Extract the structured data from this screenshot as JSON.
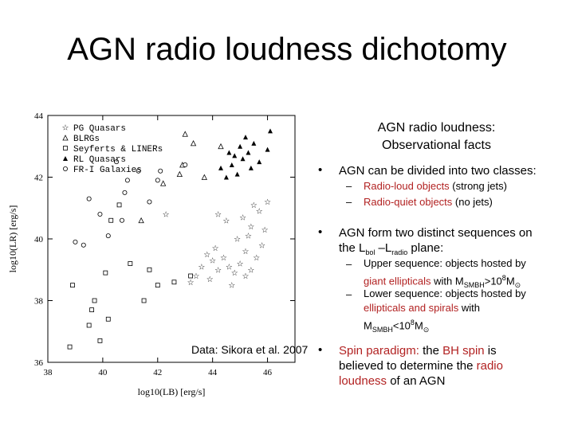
{
  "slide_title": "AGN radio loudness dichotomy",
  "credit": "Data: Sikora et al. 2007",
  "right_heading": "AGN radio loudness: Observational facts",
  "bullet1": "AGN can be divided into two classes:",
  "sub1a_red": "Radio-loud objects",
  "sub1a_rest": " (strong jets)",
  "sub1b_red": "Radio-quiet objects",
  "sub1b_rest": " (no jets)",
  "bullet2_line1": "AGN form two distinct sequences on",
  "bullet2_the": "the L",
  "bullet2_bol": "bol",
  "bullet2_dash": " –L",
  "bullet2_radio": "radio",
  "bullet2_plane": " plane:",
  "sub2a_l1": "Upper sequence: objects hosted by",
  "sub2a_red": "giant ellipticals",
  "sub2a_with": " with M",
  "sub2a_smbh": "SMBH",
  "sub2a_gt": ">10",
  "sub2a_exp": "8",
  "sub2a_m": "M",
  "sub2a_sun": "⊙",
  "sub2b_l1": "Lower sequence: objects hosted by",
  "sub2b_red": "ellipticals and spirals",
  "sub2b_with": " with",
  "sub2b_m": "M",
  "sub2b_smbh": "SMBH",
  "sub2b_lt": "<10",
  "sub2b_exp": "8",
  "sub2b_m2": "M",
  "sub2b_sun": "⊙",
  "bullet3_red1": "Spin paradigm:",
  "bullet3_the": " the ",
  "bullet3_red2": "BH spin",
  "bullet3_is": " is",
  "bullet3_line2a": "believed to determine the ",
  "bullet3_red3": "radio",
  "bullet3_red4": "loudness",
  "bullet3_end": " of an AGN",
  "bullet_glyph": "•",
  "dash_glyph": "–",
  "chart_data": {
    "type": "scatter",
    "xlabel": "log10(LB) [erg/s]",
    "ylabel": "log10(LR) [erg/s]",
    "xlim": [
      38,
      47
    ],
    "ylim": [
      36,
      44
    ],
    "xticks": [
      "38",
      "40",
      "42",
      "44",
      "46"
    ],
    "yticks": [
      "36",
      "38",
      "40",
      "42",
      "44"
    ],
    "legend_position": "top-left",
    "series": [
      {
        "name": "PG Quasars",
        "marker": "star",
        "points": [
          [
            43.8,
            39.5
          ],
          [
            44,
            39.3
          ],
          [
            44.2,
            39.0
          ],
          [
            44.4,
            39.4
          ],
          [
            44.6,
            39.1
          ],
          [
            44.8,
            38.9
          ],
          [
            45,
            39.2
          ],
          [
            45.2,
            39.6
          ],
          [
            45.4,
            39.0
          ],
          [
            45.6,
            39.4
          ],
          [
            45.8,
            39.8
          ],
          [
            45.9,
            40.3
          ],
          [
            44.9,
            40.0
          ],
          [
            45.3,
            40.1
          ],
          [
            44.5,
            40.6
          ],
          [
            45.1,
            40.7
          ],
          [
            45.5,
            41.1
          ],
          [
            45.7,
            40.9
          ],
          [
            44.2,
            40.8
          ],
          [
            43.9,
            38.7
          ],
          [
            44.7,
            38.5
          ],
          [
            45.2,
            38.8
          ],
          [
            46.0,
            41.2
          ],
          [
            45.4,
            40.4
          ],
          [
            44.1,
            39.7
          ],
          [
            43.6,
            39.1
          ],
          [
            43.4,
            38.8
          ],
          [
            42.3,
            40.8
          ],
          [
            43.2,
            38.6
          ]
        ]
      },
      {
        "name": "BLRGs",
        "marker": "open-triangle",
        "points": [
          [
            43.0,
            43.4
          ],
          [
            43.3,
            43.1
          ],
          [
            42.2,
            41.8
          ],
          [
            42.8,
            42.1
          ],
          [
            41.4,
            40.6
          ],
          [
            43.7,
            42.0
          ],
          [
            44.3,
            43.0
          ],
          [
            42.9,
            42.4
          ]
        ]
      },
      {
        "name": "Seyferts & LINERs",
        "marker": "open-square",
        "points": [
          [
            38.9,
            38.5
          ],
          [
            39.6,
            37.7
          ],
          [
            40.2,
            37.4
          ],
          [
            39.9,
            36.7
          ],
          [
            39.5,
            37.2
          ],
          [
            41.5,
            38.0
          ],
          [
            42.6,
            38.6
          ],
          [
            43.2,
            38.8
          ],
          [
            41.0,
            39.2
          ],
          [
            40.3,
            40.6
          ],
          [
            40.6,
            41.1
          ],
          [
            40.1,
            38.9
          ],
          [
            42.0,
            38.5
          ],
          [
            41.7,
            39.0
          ],
          [
            39.7,
            38.0
          ],
          [
            38.8,
            36.5
          ]
        ]
      },
      {
        "name": "RL Quasars",
        "marker": "filled-triangle",
        "points": [
          [
            44.3,
            42.3
          ],
          [
            44.5,
            42.0
          ],
          [
            44.7,
            42.4
          ],
          [
            44.9,
            42.1
          ],
          [
            45.1,
            42.6
          ],
          [
            45.3,
            42.8
          ],
          [
            45.5,
            43.1
          ],
          [
            45.2,
            43.3
          ],
          [
            44.8,
            42.7
          ],
          [
            45.4,
            42.3
          ],
          [
            45.7,
            42.5
          ],
          [
            46.0,
            42.9
          ],
          [
            45.0,
            43.0
          ],
          [
            44.6,
            42.8
          ],
          [
            46.1,
            43.5
          ]
        ]
      },
      {
        "name": "FR-I Galaxies",
        "marker": "open-circle",
        "points": [
          [
            40.5,
            42.5
          ],
          [
            40.9,
            41.9
          ],
          [
            41.3,
            42.2
          ],
          [
            39.9,
            40.8
          ],
          [
            40.2,
            40.1
          ],
          [
            40.7,
            40.6
          ],
          [
            42.0,
            41.9
          ],
          [
            41.7,
            41.2
          ],
          [
            39.3,
            39.8
          ],
          [
            39.0,
            39.9
          ],
          [
            39.5,
            41.3
          ],
          [
            42.1,
            42.2
          ],
          [
            43.0,
            42.4
          ],
          [
            40.8,
            41.5
          ]
        ]
      }
    ]
  }
}
